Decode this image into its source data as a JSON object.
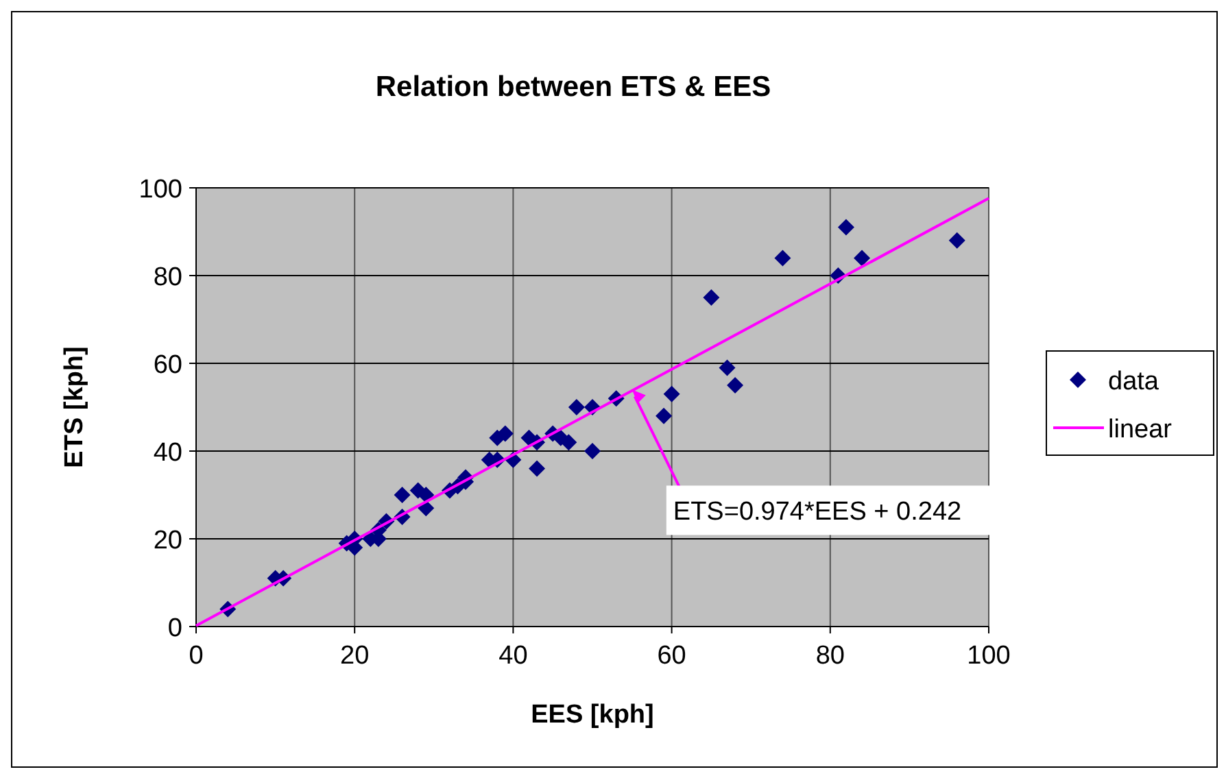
{
  "chart_data": {
    "type": "scatter",
    "title": "Relation between ETS & EES",
    "xlabel": "EES [kph]",
    "ylabel": "ETS [kph]",
    "xlim": [
      0,
      100
    ],
    "xticks": [
      0,
      20,
      40,
      60,
      80,
      100
    ],
    "ylim": [
      0,
      100
    ],
    "yticks": [
      0,
      20,
      40,
      60,
      80,
      100
    ],
    "grid": true,
    "legend": "right",
    "series": [
      {
        "name": "data",
        "type": "scatter",
        "color": "#000080",
        "marker": "diamond",
        "x": [
          4,
          10,
          11,
          19,
          20,
          20,
          22,
          23,
          23,
          24,
          26,
          26,
          28,
          29,
          29,
          32,
          33,
          34,
          34,
          37,
          38,
          38,
          39,
          40,
          42,
          43,
          43,
          45,
          46,
          47,
          48,
          50,
          50,
          53,
          59,
          60,
          65,
          67,
          68,
          74,
          81,
          82,
          84,
          96
        ],
        "values": [
          4,
          11,
          11,
          19,
          18,
          20,
          20,
          20,
          22,
          24,
          25,
          30,
          31,
          27,
          30,
          31,
          32,
          33,
          34,
          38,
          38,
          43,
          44,
          38,
          43,
          36,
          42,
          44,
          43,
          42,
          50,
          50,
          40,
          52,
          48,
          53,
          75,
          59,
          55,
          84,
          80,
          91,
          84,
          88
        ]
      },
      {
        "name": "linear",
        "type": "line",
        "color": "#ff00ff",
        "x": [
          0,
          100
        ],
        "values": [
          0.2,
          97.6
        ]
      }
    ],
    "annotations": [
      {
        "text": "ETS=0.974*EES + 0.242",
        "x": 55,
        "y": 54
      }
    ]
  }
}
